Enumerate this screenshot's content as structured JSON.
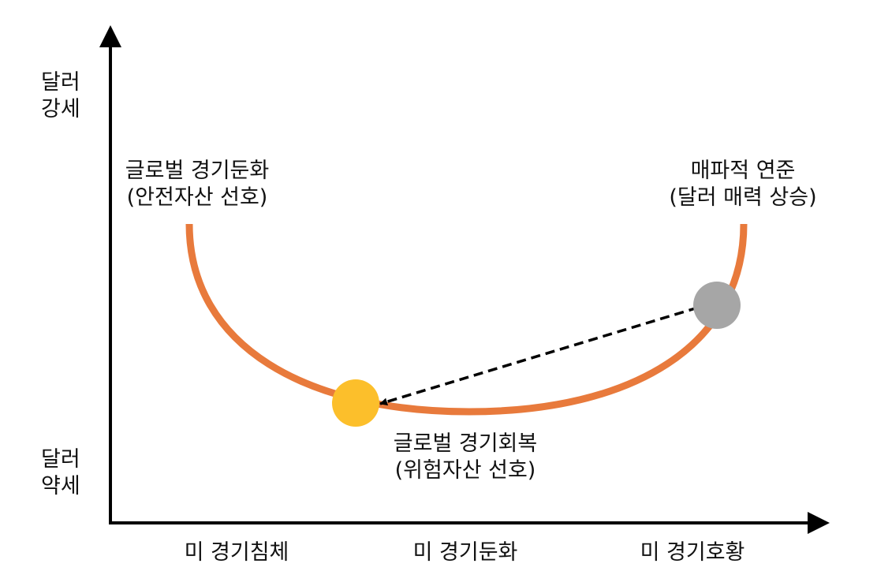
{
  "y_axis": {
    "top_label": [
      "달러",
      "강세"
    ],
    "bottom_label": [
      "달러",
      "약세"
    ]
  },
  "x_axis": {
    "labels": [
      "미 경기침체",
      "미 경기둔화",
      "미 경기호황"
    ]
  },
  "annotations": {
    "left": {
      "line1": "글로벌 경기둔화",
      "line2": "(안전자산 선호)"
    },
    "right": {
      "line1": "매파적 연준",
      "line2": "(달러 매력 상승)"
    },
    "bottom": {
      "line1": "글로벌 경기회복",
      "line2": "(위험자산 선호)"
    }
  },
  "colors": {
    "curve": "#E87A3C",
    "current_point": "#A6A6A6",
    "target_point": "#FCBF2B",
    "axis": "#000000",
    "arrow": "#000000"
  }
}
